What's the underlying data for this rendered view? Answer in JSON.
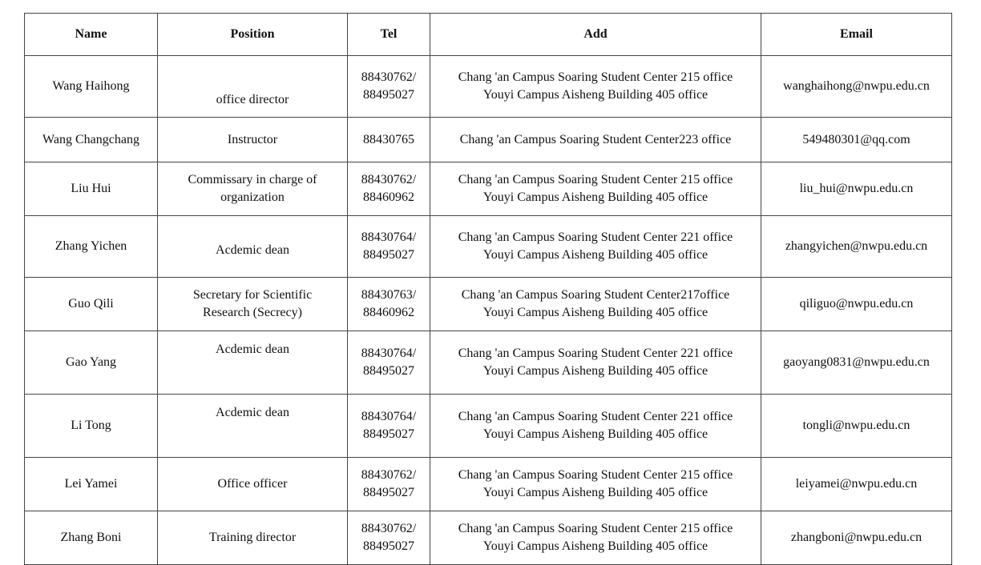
{
  "headers": [
    "Name",
    "Position",
    "Tel",
    "Add",
    "Email"
  ],
  "rows": [
    {
      "name": "Wang Haihong",
      "position": "office director",
      "tel": "88430762/\n88495027",
      "add": "Chang 'an Campus Soaring Student Center 215 office\nYouyi Campus Aisheng Building 405 office",
      "email": "wanghaihong@nwpu.edu.cn"
    },
    {
      "name": "Wang Changchang",
      "position": "Instructor",
      "tel": "88430765",
      "add": "Chang 'an Campus Soaring Student Center223 office",
      "email": "549480301@qq.com"
    },
    {
      "name": "Liu Hui",
      "position": "Commissary in charge of\norganization",
      "tel": "88430762/\n88460962",
      "add": "Chang 'an Campus Soaring Student Center 215 office\nYouyi Campus Aisheng Building 405 office",
      "email": "liu_hui@nwpu.edu.cn"
    },
    {
      "name": "Zhang Yichen",
      "position": "Acdemic dean",
      "tel": "88430764/\n88495027",
      "add": "Chang 'an Campus Soaring Student Center 221 office\nYouyi Campus Aisheng Building 405 office",
      "email": "zhangyichen@nwpu.edu.cn"
    },
    {
      "name": "Guo Qili",
      "position": "Secretary for Scientific\nResearch (Secrecy)",
      "tel": "88430763/\n88460962",
      "add": "Chang 'an Campus Soaring Student Center217office\nYouyi Campus Aisheng Building 405 office",
      "email": "qiliguo@nwpu.edu.cn"
    },
    {
      "name": "Gao Yang",
      "position": "Acdemic dean",
      "tel": "88430764/\n88495027",
      "add": "Chang 'an Campus Soaring Student Center 221 office\nYouyi Campus Aisheng Building 405 office",
      "email": "gaoyang0831@nwpu.edu.cn"
    },
    {
      "name": "Li Tong",
      "position": "Acdemic dean",
      "tel": "88430764/\n88495027",
      "add": "Chang 'an Campus Soaring Student Center 221 office\nYouyi Campus Aisheng Building 405 office",
      "email": "tongli@nwpu.edu.cn"
    },
    {
      "name": "Lei Yamei",
      "position": "Office officer",
      "tel": "88430762/\n88495027",
      "add": "Chang 'an Campus Soaring Student Center 215 office\nYouyi Campus Aisheng Building 405 office",
      "email": "leiyamei@nwpu.edu.cn"
    },
    {
      "name": "Zhang Boni",
      "position": "Training director",
      "tel": "88430762/\n88495027",
      "add": "Chang 'an Campus Soaring Student Center 215 office\nYouyi Campus Aisheng Building 405 office",
      "email": "zhangboni@nwpu.edu.cn"
    }
  ]
}
